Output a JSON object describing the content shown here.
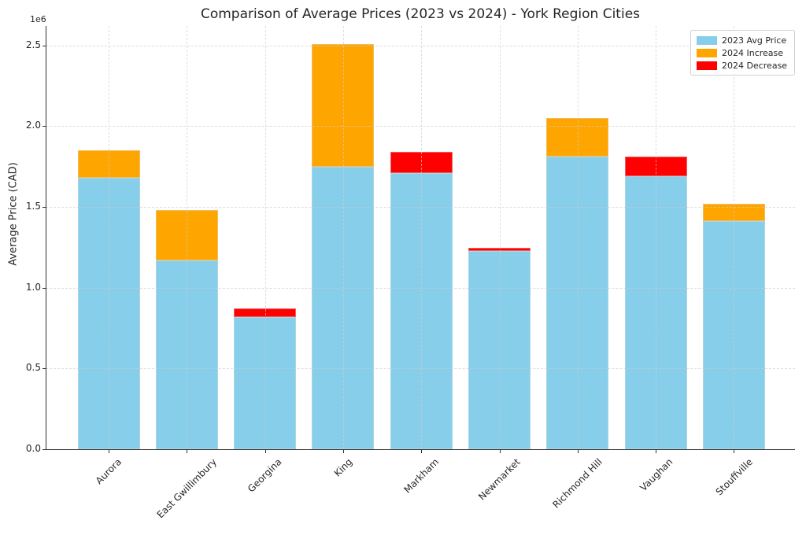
{
  "chart_data": {
    "type": "bar",
    "stacked": true,
    "title": "Comparison of Average Prices (2023 vs 2024) - York Region Cities",
    "ylabel": "Average Price (CAD)",
    "y_offset_label": "1e6",
    "ylim": [
      0,
      2620000
    ],
    "yticks": [
      {
        "value": 0,
        "label": "0.0"
      },
      {
        "value": 500000,
        "label": "0.5"
      },
      {
        "value": 1000000,
        "label": "1.0"
      },
      {
        "value": 1500000,
        "label": "1.5"
      },
      {
        "value": 2000000,
        "label": "2.0"
      },
      {
        "value": 2500000,
        "label": "2.5"
      }
    ],
    "grid": {
      "visible": true,
      "style": "dashed",
      "color": "#d7d7d7"
    },
    "colors": {
      "base": "#87CEEB",
      "increase": "#FFA500",
      "decrease": "#FF0000"
    },
    "legend": {
      "position": "upper-right",
      "items": [
        {
          "label": "2023 Avg Price",
          "color_key": "base"
        },
        {
          "label": "2024 Increase",
          "color_key": "increase"
        },
        {
          "label": "2024 Decrease",
          "color_key": "decrease"
        }
      ]
    },
    "categories": [
      "Aurora",
      "East Gwillimbury",
      "Georgina",
      "King",
      "Markham",
      "Newmarket",
      "Richmond Hill",
      "Vaughan",
      "Stouffville"
    ],
    "bars": [
      {
        "city": "Aurora",
        "base_value": 1680000,
        "change_value": 170000,
        "change_type": "increase",
        "price_2023": 1680000,
        "price_2024": 1850000
      },
      {
        "city": "East Gwillimbury",
        "base_value": 1170000,
        "change_value": 310000,
        "change_type": "increase",
        "price_2023": 1170000,
        "price_2024": 1480000
      },
      {
        "city": "Georgina",
        "base_value": 820000,
        "change_value": 50000,
        "change_type": "decrease",
        "price_2023": 870000,
        "price_2024": 820000
      },
      {
        "city": "King",
        "base_value": 1750000,
        "change_value": 760000,
        "change_type": "increase",
        "price_2023": 1750000,
        "price_2024": 2510000
      },
      {
        "city": "Markham",
        "base_value": 1710000,
        "change_value": 130000,
        "change_type": "decrease",
        "price_2023": 1840000,
        "price_2024": 1710000
      },
      {
        "city": "Newmarket",
        "base_value": 1225000,
        "change_value": 20000,
        "change_type": "decrease",
        "price_2023": 1245000,
        "price_2024": 1225000
      },
      {
        "city": "Richmond Hill",
        "base_value": 1810000,
        "change_value": 240000,
        "change_type": "increase",
        "price_2023": 1810000,
        "price_2024": 2050000
      },
      {
        "city": "Vaughan",
        "base_value": 1690000,
        "change_value": 120000,
        "change_type": "decrease",
        "price_2023": 1810000,
        "price_2024": 1690000
      },
      {
        "city": "Stouffville",
        "base_value": 1410000,
        "change_value": 110000,
        "change_type": "increase",
        "price_2023": 1410000,
        "price_2024": 1520000
      }
    ]
  }
}
